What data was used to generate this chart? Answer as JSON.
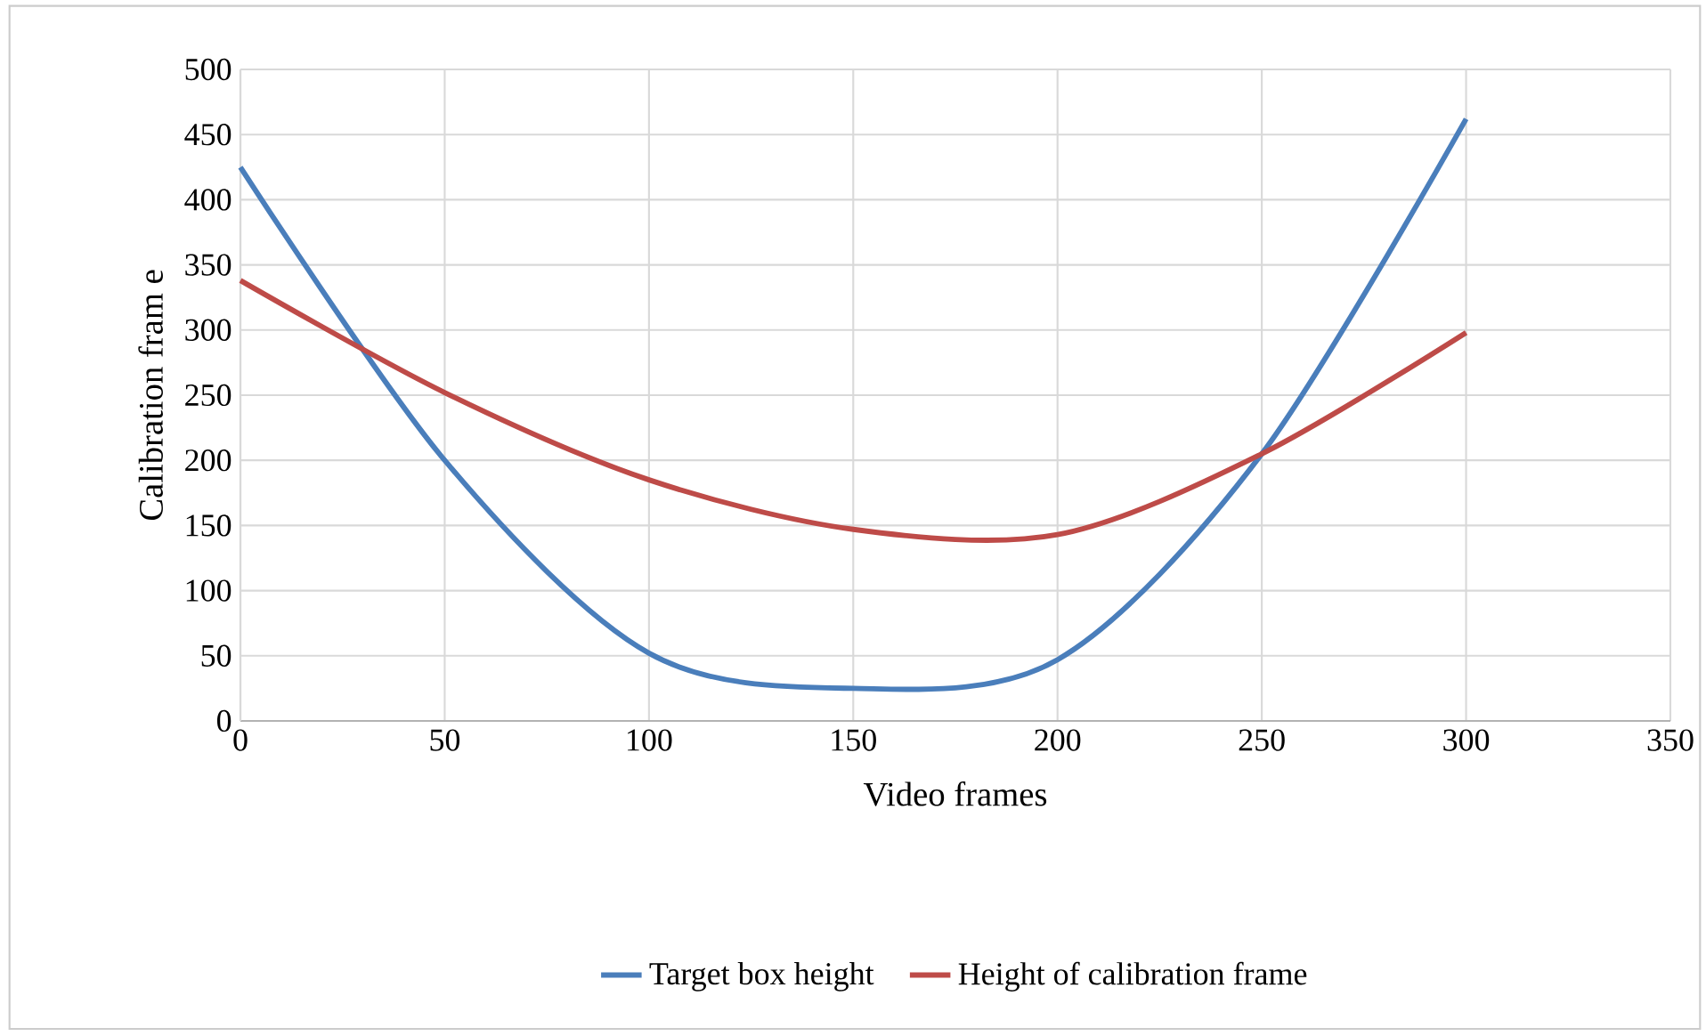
{
  "chart_data": {
    "type": "line",
    "xlabel": "Video frames",
    "ylabel": "Calibration fram e",
    "xlim": [
      0,
      350
    ],
    "xticks": [
      0,
      50,
      100,
      150,
      200,
      250,
      300,
      350
    ],
    "ylim": [
      0,
      500
    ],
    "yticks": [
      0,
      50,
      100,
      150,
      200,
      250,
      300,
      350,
      400,
      450,
      500
    ],
    "grid": true,
    "legend": "bottom",
    "marker": "none",
    "line_style": "solid",
    "x": [
      0,
      50,
      100,
      150,
      200,
      250,
      300
    ],
    "series": [
      {
        "name": "Target box height",
        "color": "#4a7ebb",
        "values": [
          425,
          200,
          52,
          25,
          47,
          205,
          462
        ]
      },
      {
        "name": "Height of calibration frame",
        "color": "#be4b48",
        "values": [
          338,
          252,
          185,
          147,
          143,
          205,
          298
        ]
      }
    ]
  }
}
